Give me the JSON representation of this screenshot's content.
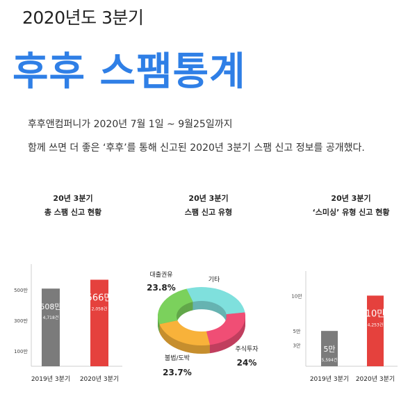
{
  "header": {
    "subtitle": "2020년도 3분기",
    "title": "후후 스팸통계"
  },
  "intro": {
    "line1": "후후앤컴퍼니가 2020년 7월 1일 ~ 9월25일까지",
    "line2": "함께 쓰면 더 좋은 ‘후후’를 통해 신고된 2020년 3분기 스팸 신고 정보를 공개했다."
  },
  "colors": {
    "title_blue": "#2f7fe6",
    "bar_2019": "#7b7b7b",
    "bar_2020": "#e5413d",
    "donut_loan": "#7bd15c",
    "donut_other": "#7fe0dd",
    "donut_stock": "#f04e75",
    "donut_gambling": "#f8b23a"
  },
  "chart_data": [
    {
      "type": "bar",
      "title_line1": "20년 3분기",
      "title_line2": "총 스팸 신고 현황",
      "categories": [
        "2019년 3분기",
        "2020년 3분기"
      ],
      "values": [
        508,
        566
      ],
      "value_labels": [
        "508만",
        "566만"
      ],
      "sub_labels": [
        "4,718건",
        "2,058건"
      ],
      "y_ticks": [
        {
          "value": 500,
          "label": "500만"
        },
        {
          "value": 300,
          "label": "300만"
        },
        {
          "value": 100,
          "label": "100만"
        }
      ],
      "ylim": [
        0,
        600
      ]
    },
    {
      "type": "pie",
      "title_line1": "20년 3분기",
      "title_line2": "스팸 신고 유형",
      "slices": [
        {
          "label": "기타",
          "value": 28.5,
          "pct": ""
        },
        {
          "label": "주식투자",
          "value": 24.0,
          "pct": "24%"
        },
        {
          "label": "불법/도박",
          "value": 23.7,
          "pct": "23.7%"
        },
        {
          "label": "대출권유",
          "value": 23.8,
          "pct": "23.8%"
        }
      ]
    },
    {
      "type": "bar",
      "title_line1": "20년 3분기",
      "title_line2": "‘스미싱’ 유형 신고 현황",
      "categories": [
        "2019년 3분기",
        "2020년 3분기"
      ],
      "values": [
        5,
        10
      ],
      "value_labels": [
        "5만",
        "10만"
      ],
      "sub_labels": [
        "5,594건",
        "4,253건"
      ],
      "y_ticks": [
        {
          "value": 10,
          "label": "10만"
        },
        {
          "value": 5,
          "label": "5만"
        },
        {
          "value": 3,
          "label": "3만"
        }
      ],
      "ylim": [
        0,
        12
      ]
    }
  ]
}
